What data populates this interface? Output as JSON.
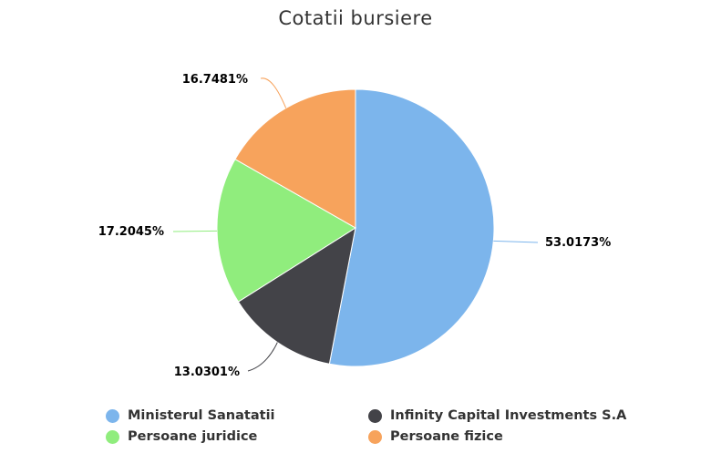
{
  "chart_data": {
    "type": "pie",
    "title": "Cotatii bursiere",
    "slices": [
      {
        "name": "Ministerul Sanatatii",
        "value": 53.0173,
        "label": "53.0173%",
        "color": "#7cb5ec"
      },
      {
        "name": "Infinity Capital Investments S.A",
        "value": 13.0301,
        "label": "13.0301%",
        "color": "#434348"
      },
      {
        "name": "Persoane juridice",
        "value": 17.2045,
        "label": "17.2045%",
        "color": "#90ed7d"
      },
      {
        "name": "Persoane fizice",
        "value": 16.7481,
        "label": "16.7481%",
        "color": "#f7a35c"
      }
    ],
    "legend_position": "bottom"
  }
}
